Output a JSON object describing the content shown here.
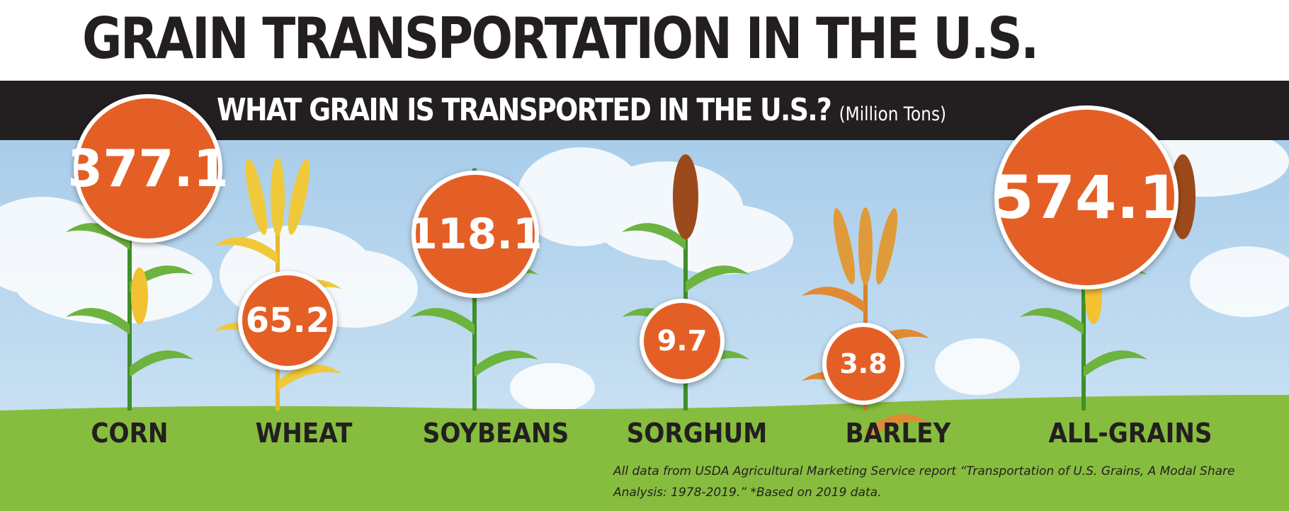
{
  "title": "GRAIN TRANSPORTATION IN THE U.S.",
  "subtitle": "WHAT GRAIN IS TRANSPORTED IN THE U.S.?",
  "unit": "(Million Tons)",
  "colors": {
    "bubble": "#e45f26",
    "band": "#231f20",
    "ground": "#86bd3e",
    "sky": "#bfdcf2"
  },
  "chart_data": {
    "type": "bubble",
    "title": "WHAT GRAIN IS TRANSPORTED IN THE U.S.?",
    "unit": "Million Tons",
    "categories": [
      "CORN",
      "WHEAT",
      "SOYBEANS",
      "SORGHUM",
      "BARLEY",
      "ALL-GRAINS"
    ],
    "values": [
      377.1,
      65.2,
      118.1,
      9.7,
      3.8,
      574.1
    ],
    "value_labels": [
      "377.1",
      "65.2",
      "118.1",
      "9.7",
      "3.8",
      "574.1"
    ]
  },
  "footnote": {
    "line1": "All data from USDA Agricultural Marketing Service report “Transportation of U.S. Grains, A Modal Share",
    "line2": "Analysis: 1978-2019.” *Based on 2019 data."
  }
}
